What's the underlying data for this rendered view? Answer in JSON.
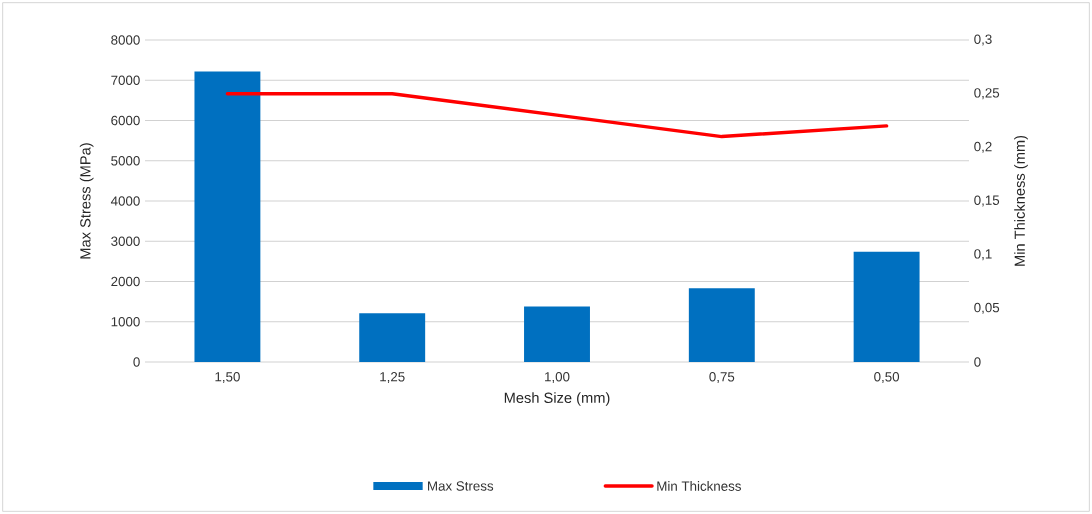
{
  "chart_data": {
    "type": "bar",
    "xlabel": "Mesh Size (mm)",
    "ylabel": "Max Stress (MPa)",
    "y2label": "Min Thickness (mm)",
    "categories": [
      "1,50",
      "1,25",
      "1,00",
      "0,75",
      "0,50"
    ],
    "series": [
      {
        "name": "Max Stress",
        "color": "#0070c0",
        "values": [
          7220,
          1210,
          1380,
          1830,
          2740
        ]
      },
      {
        "name": "Min Thickness",
        "type": "line",
        "color": "#ff0000",
        "axis": "y2",
        "values": [
          0.25,
          0.25,
          0.23,
          0.21,
          0.22
        ]
      }
    ],
    "ylim": [
      0,
      8000
    ],
    "yticks": [
      0,
      1000,
      2000,
      3000,
      4000,
      5000,
      6000,
      7000,
      8000
    ],
    "y2lim": [
      0,
      0.3
    ],
    "y2ticks": [
      {
        "value": 0,
        "label": "0"
      },
      {
        "value": 0.05,
        "label": "0,05"
      },
      {
        "value": 0.1,
        "label": "0,1"
      },
      {
        "value": 0.15,
        "label": "0,15"
      },
      {
        "value": 0.2,
        "label": "0,2"
      },
      {
        "value": 0.25,
        "label": "0,25"
      },
      {
        "value": 0.3,
        "label": "0,3"
      }
    ],
    "grid": "y",
    "legend": "bottom"
  }
}
